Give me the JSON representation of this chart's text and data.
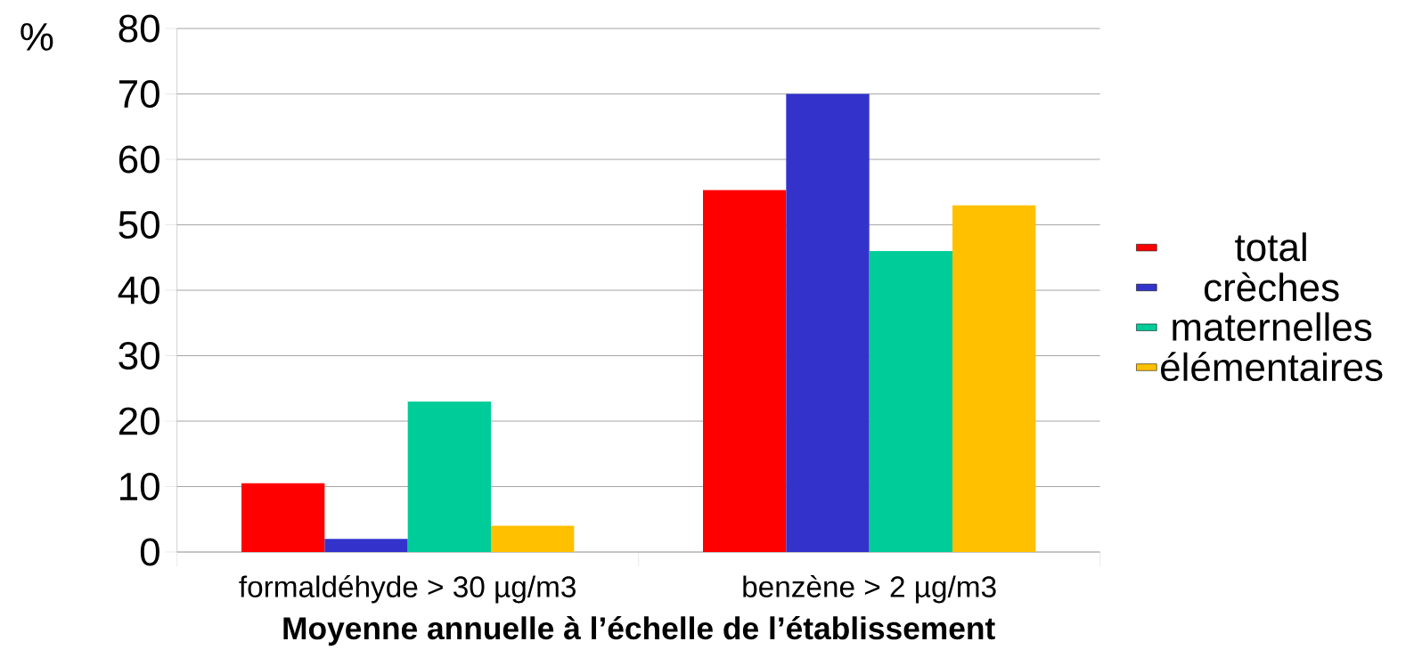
{
  "chart_data": {
    "type": "bar",
    "xlabel": "**Moyenne annuelle à l’échelle de l’établissement**",
    "ylabel": "%",
    "categories": [
      "formaldéhyde > 30 µg/m3",
      "benzène > 2 µg/m3"
    ],
    "series": [
      {
        "name": "total",
        "color": "#ff0000",
        "values": [
          10.5,
          55.3
        ]
      },
      {
        "name": "crèches",
        "color": "#3333cc",
        "values": [
          2,
          70
        ]
      },
      {
        "name": "maternelles",
        "color": "#00cc99",
        "values": [
          23,
          46
        ]
      },
      {
        "name": "élémentaires",
        "color": "#ffc000",
        "values": [
          4,
          53
        ]
      }
    ],
    "ylim": [
      0,
      80
    ],
    "yticks": [
      0,
      10,
      20,
      30,
      40,
      50,
      60,
      70,
      80
    ],
    "grid": "y",
    "legend": "right"
  }
}
